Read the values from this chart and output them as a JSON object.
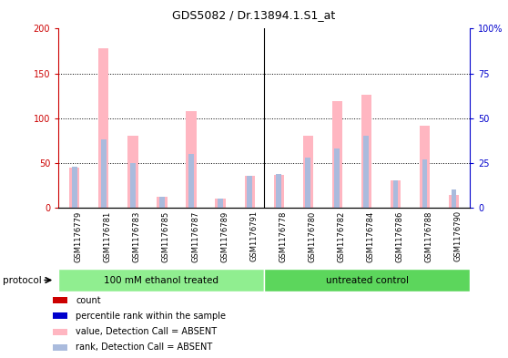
{
  "title": "GDS5082 / Dr.13894.1.S1_at",
  "samples": [
    "GSM1176779",
    "GSM1176781",
    "GSM1176783",
    "GSM1176785",
    "GSM1176787",
    "GSM1176789",
    "GSM1176791",
    "GSM1176778",
    "GSM1176780",
    "GSM1176782",
    "GSM1176784",
    "GSM1176786",
    "GSM1176788",
    "GSM1176790"
  ],
  "value_absent": [
    45,
    178,
    80,
    12,
    108,
    10,
    36,
    37,
    80,
    119,
    126,
    30,
    92,
    14
  ],
  "rank_absent": [
    23,
    38,
    25,
    6,
    30,
    5,
    18,
    19,
    28,
    33,
    40,
    15,
    27,
    10
  ],
  "groups": [
    {
      "label": "100 mM ethanol treated",
      "start": 0,
      "end": 7,
      "color": "#90EE90"
    },
    {
      "label": "untreated control",
      "start": 7,
      "end": 14,
      "color": "#5CD65C"
    }
  ],
  "ylim_left": [
    0,
    200
  ],
  "ylim_right": [
    0,
    100
  ],
  "yticks_left": [
    0,
    50,
    100,
    150,
    200
  ],
  "ytick_labels_left": [
    "0",
    "50",
    "100",
    "150",
    "200"
  ],
  "yticks_right": [
    0,
    25,
    50,
    75,
    100
  ],
  "ytick_labels_right": [
    "0",
    "25",
    "50",
    "75",
    "100%"
  ],
  "left_axis_color": "#CC0000",
  "right_axis_color": "#0000CC",
  "value_absent_color": "#FFB6C1",
  "rank_absent_color": "#AABBDD",
  "count_color": "#CC0000",
  "rank_color": "#0000CC",
  "legend_items": [
    {
      "label": "count",
      "color": "#CC0000"
    },
    {
      "label": "percentile rank within the sample",
      "color": "#0000CC"
    },
    {
      "label": "value, Detection Call = ABSENT",
      "color": "#FFB6C1"
    },
    {
      "label": "rank, Detection Call = ABSENT",
      "color": "#AABBDD"
    }
  ],
  "protocol_label": "protocol"
}
